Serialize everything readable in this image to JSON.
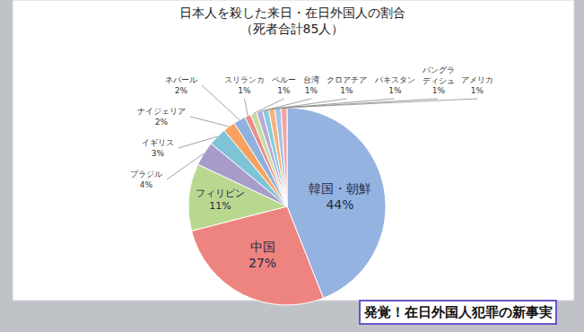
{
  "chart_data": {
    "type": "pie",
    "title": "日本人を殺した来日・在日外国人の割合",
    "subtitle": "（死者合計85人）",
    "categories": [
      "韓国・朝鮮",
      "中国",
      "フィリピン",
      "ブラジル",
      "イギリス",
      "ナイジェリア",
      "ネパール",
      "スリランカ",
      "ペルー",
      "台湾",
      "クロアチア",
      "パキスタン",
      "バングラディシュ",
      "アメリカ"
    ],
    "values": [
      44,
      27,
      11,
      4,
      3,
      2,
      2,
      1,
      1,
      1,
      1,
      1,
      1,
      1
    ],
    "value_labels": [
      "44%",
      "27%",
      "11%",
      "4%",
      "3%",
      "2%",
      "2%",
      "1%",
      "1%",
      "1%",
      "1%",
      "1%",
      "1%",
      "1%"
    ],
    "colors": [
      "#95b3e0",
      "#ee8480",
      "#b9d88f",
      "#a89ccb",
      "#7fc3d6",
      "#f7a25f",
      "#8fb1de",
      "#e88e8b",
      "#c5dca0",
      "#b8a9d6",
      "#87cbe0",
      "#f5b27c",
      "#a8c2e6",
      "#f0a5a3"
    ],
    "data_labels": true,
    "annotations": [
      "発覚！在日外国人犯罪の新事実"
    ]
  }
}
